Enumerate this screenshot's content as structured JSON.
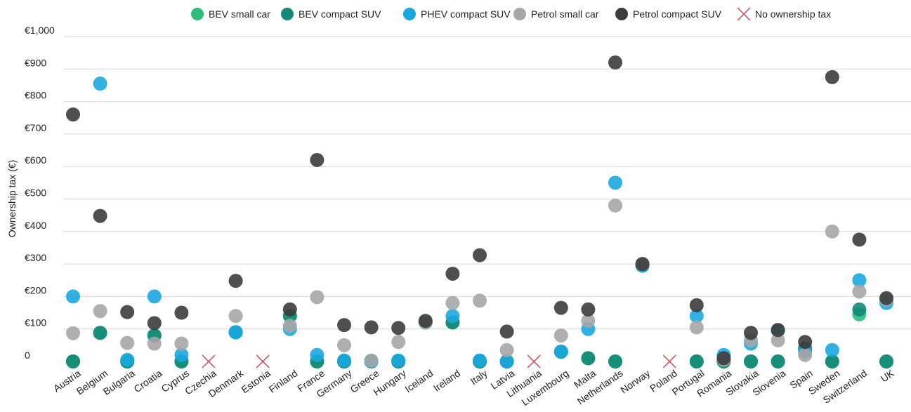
{
  "chart_data": {
    "type": "scatter",
    "title": "",
    "xlabel": "",
    "ylabel": "Ownership tax (€)",
    "ylim": [
      0,
      1000
    ],
    "yticks": [
      0,
      100,
      200,
      300,
      400,
      500,
      600,
      700,
      800,
      900,
      1000
    ],
    "ytick_labels": [
      "0",
      "€100",
      "€200",
      "€300",
      "€400",
      "€500",
      "€600",
      "€700",
      "€800",
      "€900",
      "€1,000"
    ],
    "grid": true,
    "legend_position": "top",
    "categories": [
      "Austria",
      "Belgium",
      "Bulgaria",
      "Croatia",
      "Cyprus",
      "Czechia",
      "Denmark",
      "Estonia",
      "Finland",
      "France",
      "Germany",
      "Greece",
      "Hungary",
      "Iceland",
      "Ireland",
      "Italy",
      "Latvia",
      "Lithuania",
      "Luxembourg",
      "Malta",
      "Netherlands",
      "Norway",
      "Poland",
      "Portugal",
      "Romania",
      "Slovakia",
      "Slovenia",
      "Spain",
      "Sweden",
      "Switzerland",
      "UK"
    ],
    "series": [
      {
        "name": "BEV small car",
        "color": "#2dbe7b",
        "values": [
          0,
          88,
          0,
          80,
          0,
          null,
          90,
          null,
          140,
          0,
          0,
          0,
          0,
          120,
          120,
          0,
          0,
          null,
          30,
          10,
          0,
          295,
          null,
          0,
          0,
          0,
          0,
          40,
          0,
          145,
          0
        ]
      },
      {
        "name": "BEV compact SUV",
        "color": "#138a77",
        "values": [
          0,
          88,
          0,
          80,
          0,
          null,
          90,
          null,
          140,
          0,
          0,
          0,
          0,
          120,
          120,
          0,
          0,
          null,
          30,
          10,
          0,
          295,
          null,
          0,
          0,
          0,
          0,
          40,
          0,
          160,
          0
        ]
      },
      {
        "name": "PHEV compact SUV",
        "color": "#19a7e0",
        "values": [
          200,
          855,
          5,
          200,
          20,
          null,
          90,
          null,
          100,
          20,
          3,
          0,
          3,
          120,
          140,
          3,
          0,
          null,
          30,
          100,
          550,
          295,
          null,
          140,
          20,
          55,
          95,
          30,
          35,
          250,
          180
        ]
      },
      {
        "name": "Petrol small car",
        "color": "#a6a6a6",
        "values": [
          87,
          155,
          57,
          55,
          55,
          null,
          140,
          null,
          110,
          198,
          50,
          3,
          60,
          120,
          180,
          187,
          35,
          null,
          80,
          125,
          480,
          300,
          null,
          105,
          5,
          65,
          65,
          20,
          400,
          215,
          190
        ]
      },
      {
        "name": "Petrol compact SUV",
        "color": "#3c3c3c",
        "values": [
          760,
          448,
          152,
          118,
          150,
          null,
          248,
          null,
          160,
          620,
          112,
          105,
          103,
          125,
          270,
          327,
          92,
          null,
          165,
          160,
          920,
          300,
          null,
          173,
          10,
          88,
          97,
          60,
          875,
          375,
          195
        ]
      },
      {
        "name": "No ownership tax",
        "color": "#d04a5a",
        "marker": "cross",
        "values": [
          null,
          null,
          null,
          null,
          null,
          0,
          null,
          0,
          null,
          null,
          null,
          null,
          null,
          null,
          null,
          null,
          null,
          0,
          null,
          null,
          null,
          null,
          0,
          null,
          null,
          null,
          null,
          null,
          null,
          null,
          null
        ]
      }
    ]
  }
}
